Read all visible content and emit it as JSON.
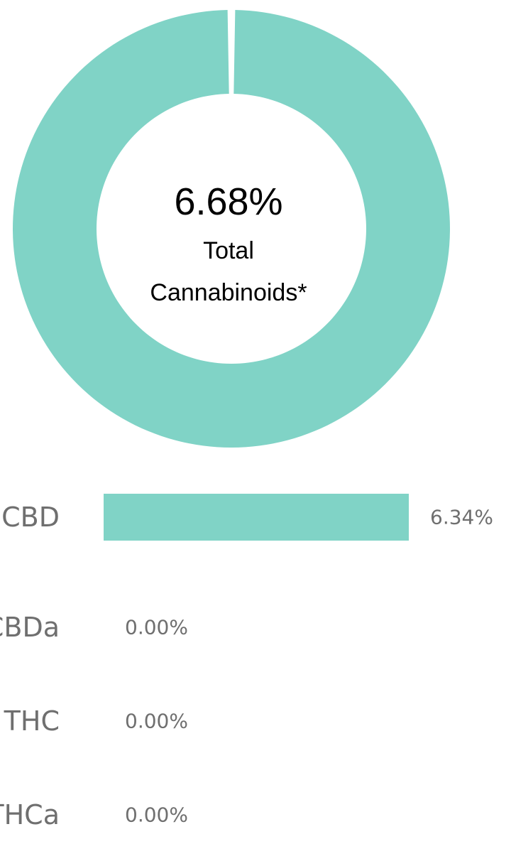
{
  "chart_data": [
    {
      "type": "pie",
      "center_value": "6.68%",
      "center_label_lines": [
        "Total",
        "Cannabinoids*"
      ],
      "slices": [
        {
          "value": 100
        }
      ],
      "color": "#80d3c6"
    },
    {
      "type": "bar",
      "orientation": "horizontal",
      "categories": [
        "CBD",
        "CBDa",
        "THC",
        "THCa"
      ],
      "values": [
        6.34,
        0.0,
        0.0,
        0.0
      ],
      "value_labels": [
        "6.34%",
        "0.00%",
        "0.00%",
        "0.00%"
      ],
      "color": "#80d3c6",
      "xlim": [
        0,
        6.34
      ]
    }
  ]
}
